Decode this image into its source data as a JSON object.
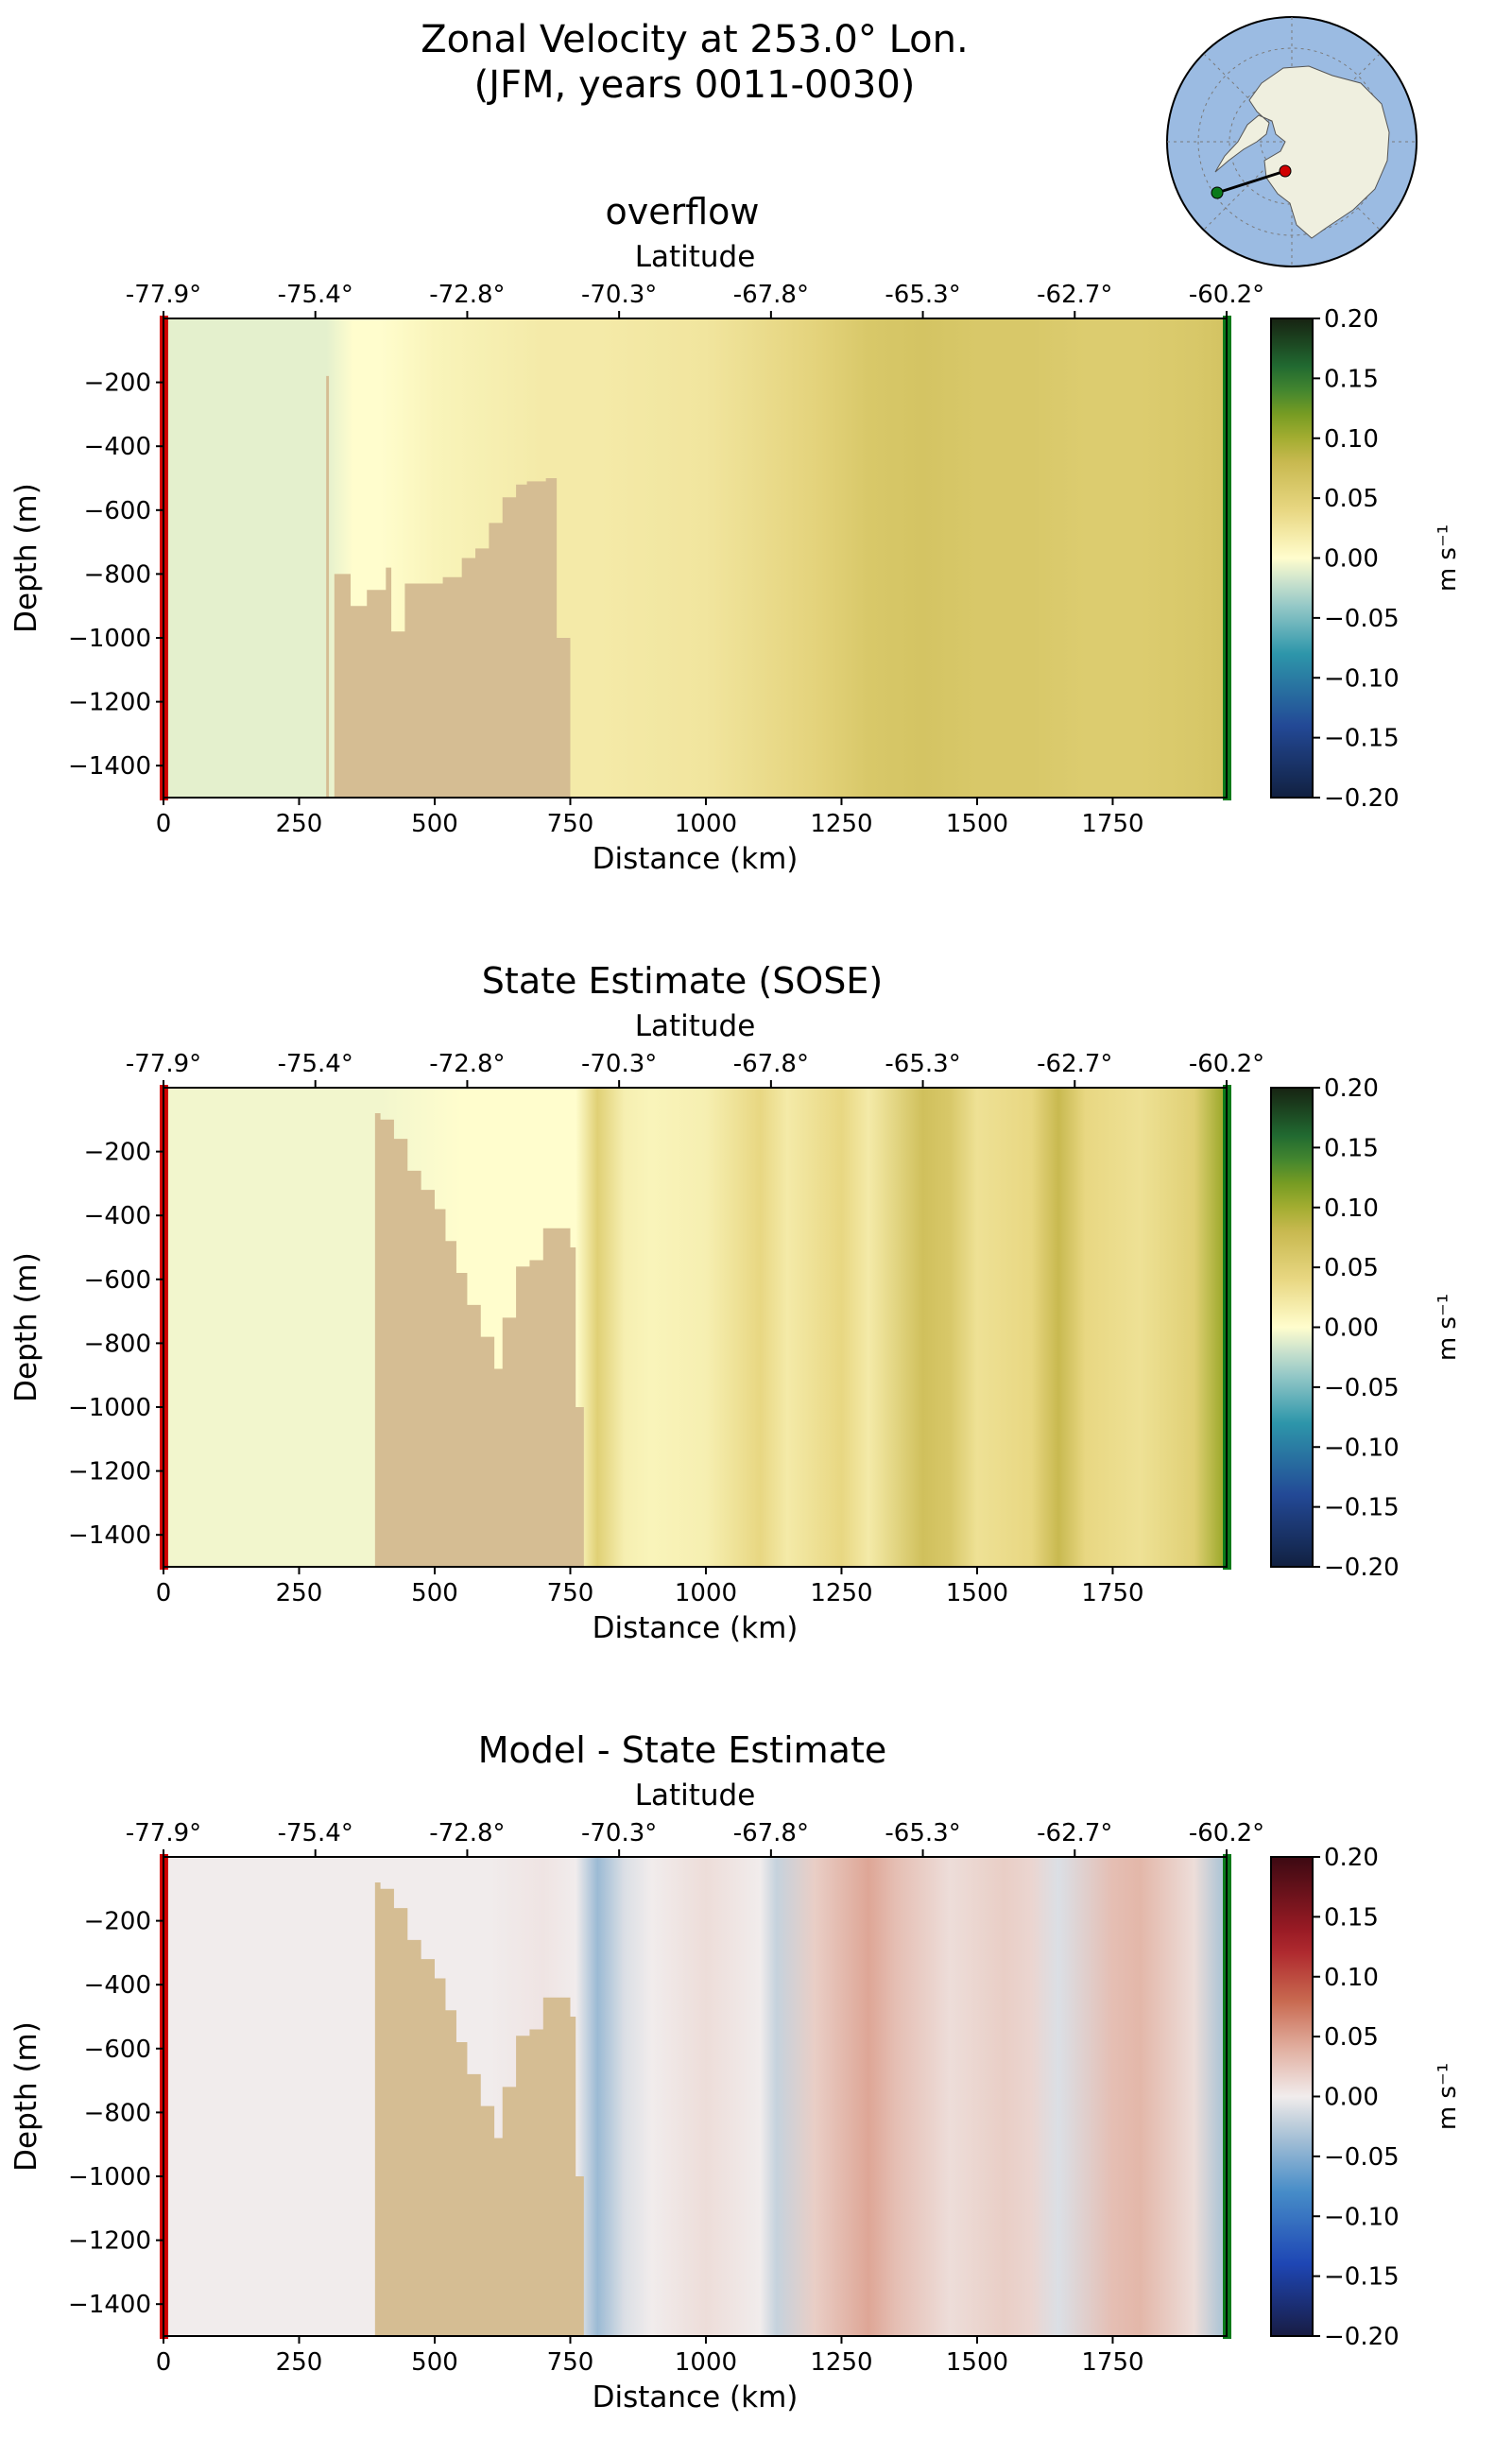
{
  "figure": {
    "title_line1": "Zonal Velocity at 253.0° Lon.",
    "title_line2": "(JFM, years 0011-0030)"
  },
  "colors": {
    "land": "#d5bd93",
    "start_marker": "#d00000",
    "end_marker": "#0a7a1a",
    "map_ocean": "#9bbbe2",
    "map_land": "#efefdf",
    "section_line": "#000000"
  },
  "inset_map": {
    "type": "south-polar-stereographic",
    "markers": [
      "green-start-point",
      "red-end-point"
    ]
  },
  "chart_data": [
    {
      "type": "heatmap",
      "title": "overflow",
      "xlabel": "Distance (km)",
      "ylabel": "Depth (m)",
      "top_axis_label": "Latitude",
      "top_ticks": [
        "-77.9°",
        "-75.4°",
        "-72.8°",
        "-70.3°",
        "-67.8°",
        "-65.3°",
        "-62.7°",
        "-60.2°"
      ],
      "xlim": [
        0,
        1960
      ],
      "ylim": [
        -1500,
        0
      ],
      "xticks": [
        0,
        250,
        500,
        750,
        1000,
        1250,
        1500,
        1750
      ],
      "yticks": [
        -200,
        -400,
        -600,
        -800,
        -1000,
        -1200,
        -1400
      ],
      "colorbar": {
        "label": "m s⁻¹",
        "range": [
          -0.2,
          0.2
        ],
        "ticks": [
          "0.20",
          "0.15",
          "0.10",
          "0.05",
          "0.00",
          "−0.05",
          "−0.10",
          "−0.15",
          "−0.20"
        ],
        "colormap": "delta (blue-teal-white-yellow-green)"
      },
      "bathymetry_depth_by_distance": [
        [
          0,
          1500
        ],
        [
          300,
          180
        ],
        [
          305,
          1500
        ],
        [
          315,
          800
        ],
        [
          345,
          900
        ],
        [
          375,
          850
        ],
        [
          410,
          780
        ],
        [
          420,
          980
        ],
        [
          445,
          830
        ],
        [
          480,
          830
        ],
        [
          515,
          810
        ],
        [
          550,
          750
        ],
        [
          575,
          720
        ],
        [
          600,
          640
        ],
        [
          625,
          560
        ],
        [
          650,
          520
        ],
        [
          670,
          510
        ],
        [
          705,
          500
        ],
        [
          725,
          1000
        ],
        [
          750,
          1500
        ]
      ],
      "velocity_profile_by_distance": [
        [
          300,
          -0.01
        ],
        [
          350,
          0.0
        ],
        [
          400,
          0.0
        ],
        [
          500,
          0.01
        ],
        [
          600,
          0.015
        ],
        [
          700,
          0.02
        ],
        [
          800,
          0.02
        ],
        [
          1000,
          0.025
        ],
        [
          1200,
          0.045
        ],
        [
          1300,
          0.06
        ],
        [
          1400,
          0.065
        ],
        [
          1500,
          0.06
        ],
        [
          1600,
          0.06
        ],
        [
          1700,
          0.055
        ],
        [
          1800,
          0.055
        ],
        [
          1900,
          0.06
        ],
        [
          1950,
          0.065
        ]
      ]
    },
    {
      "type": "heatmap",
      "title": "State Estimate (SOSE)",
      "xlabel": "Distance (km)",
      "ylabel": "Depth (m)",
      "top_axis_label": "Latitude",
      "top_ticks": [
        "-77.9°",
        "-75.4°",
        "-72.8°",
        "-70.3°",
        "-67.8°",
        "-65.3°",
        "-62.7°",
        "-60.2°"
      ],
      "xlim": [
        0,
        1960
      ],
      "ylim": [
        -1500,
        0
      ],
      "xticks": [
        0,
        250,
        500,
        750,
        1000,
        1250,
        1500,
        1750
      ],
      "yticks": [
        -200,
        -400,
        -600,
        -800,
        -1000,
        -1200,
        -1400
      ],
      "colorbar": {
        "label": "m s⁻¹",
        "range": [
          -0.2,
          0.2
        ],
        "ticks": [
          "0.20",
          "0.15",
          "0.10",
          "0.05",
          "0.00",
          "−0.05",
          "−0.10",
          "−0.15",
          "−0.20"
        ],
        "colormap": "delta (blue-teal-white-yellow-green)"
      },
      "bathymetry_depth_by_distance": [
        [
          0,
          1500
        ],
        [
          390,
          80
        ],
        [
          400,
          100
        ],
        [
          425,
          160
        ],
        [
          450,
          260
        ],
        [
          475,
          320
        ],
        [
          500,
          380
        ],
        [
          520,
          480
        ],
        [
          540,
          580
        ],
        [
          560,
          680
        ],
        [
          585,
          780
        ],
        [
          600,
          780
        ],
        [
          610,
          880
        ],
        [
          625,
          720
        ],
        [
          650,
          560
        ],
        [
          675,
          540
        ],
        [
          700,
          440
        ],
        [
          725,
          440
        ],
        [
          750,
          500
        ],
        [
          760,
          1000
        ],
        [
          775,
          1500
        ]
      ],
      "velocity_profile_by_distance": [
        [
          400,
          -0.005
        ],
        [
          550,
          0.0
        ],
        [
          700,
          0.0
        ],
        [
          760,
          0.0
        ],
        [
          800,
          0.05
        ],
        [
          850,
          0.015
        ],
        [
          900,
          0.01
        ],
        [
          1000,
          0.015
        ],
        [
          1100,
          0.04
        ],
        [
          1150,
          0.02
        ],
        [
          1250,
          0.04
        ],
        [
          1300,
          0.02
        ],
        [
          1400,
          0.07
        ],
        [
          1450,
          0.06
        ],
        [
          1500,
          0.03
        ],
        [
          1600,
          0.04
        ],
        [
          1650,
          0.08
        ],
        [
          1700,
          0.04
        ],
        [
          1800,
          0.03
        ],
        [
          1900,
          0.05
        ],
        [
          1950,
          0.1
        ]
      ]
    },
    {
      "type": "heatmap",
      "title": "Model - State Estimate",
      "xlabel": "Distance (km)",
      "ylabel": "Depth (m)",
      "top_axis_label": "Latitude",
      "top_ticks": [
        "-77.9°",
        "-75.4°",
        "-72.8°",
        "-70.3°",
        "-67.8°",
        "-65.3°",
        "-62.7°",
        "-60.2°"
      ],
      "xlim": [
        0,
        1960
      ],
      "ylim": [
        -1500,
        0
      ],
      "xticks": [
        0,
        250,
        500,
        750,
        1000,
        1250,
        1500,
        1750
      ],
      "yticks": [
        -200,
        -400,
        -600,
        -800,
        -1000,
        -1200,
        -1400
      ],
      "colorbar": {
        "label": "m s⁻¹",
        "range": [
          -0.2,
          0.2
        ],
        "ticks": [
          "0.20",
          "0.15",
          "0.10",
          "0.05",
          "0.00",
          "−0.05",
          "−0.10",
          "−0.15",
          "−0.20"
        ],
        "colormap": "balance (blue-white-red)"
      },
      "bathymetry_depth_by_distance": [
        [
          0,
          1500
        ],
        [
          390,
          80
        ],
        [
          400,
          100
        ],
        [
          425,
          160
        ],
        [
          450,
          260
        ],
        [
          475,
          320
        ],
        [
          500,
          380
        ],
        [
          520,
          480
        ],
        [
          540,
          580
        ],
        [
          560,
          680
        ],
        [
          585,
          780
        ],
        [
          600,
          780
        ],
        [
          610,
          880
        ],
        [
          625,
          720
        ],
        [
          650,
          560
        ],
        [
          675,
          540
        ],
        [
          700,
          440
        ],
        [
          725,
          440
        ],
        [
          750,
          500
        ],
        [
          760,
          1000
        ],
        [
          775,
          1500
        ]
      ],
      "velocity_profile_by_distance": [
        [
          400,
          0.0
        ],
        [
          600,
          0.0
        ],
        [
          700,
          0.005
        ],
        [
          760,
          0.0
        ],
        [
          800,
          -0.04
        ],
        [
          850,
          -0.01
        ],
        [
          900,
          0.0
        ],
        [
          1000,
          0.01
        ],
        [
          1100,
          0.0
        ],
        [
          1130,
          -0.02
        ],
        [
          1200,
          0.02
        ],
        [
          1300,
          0.045
        ],
        [
          1350,
          0.03
        ],
        [
          1450,
          0.01
        ],
        [
          1550,
          0.02
        ],
        [
          1600,
          0.015
        ],
        [
          1650,
          -0.01
        ],
        [
          1750,
          0.03
        ],
        [
          1800,
          0.035
        ],
        [
          1900,
          0.01
        ],
        [
          1950,
          -0.03
        ]
      ]
    }
  ]
}
